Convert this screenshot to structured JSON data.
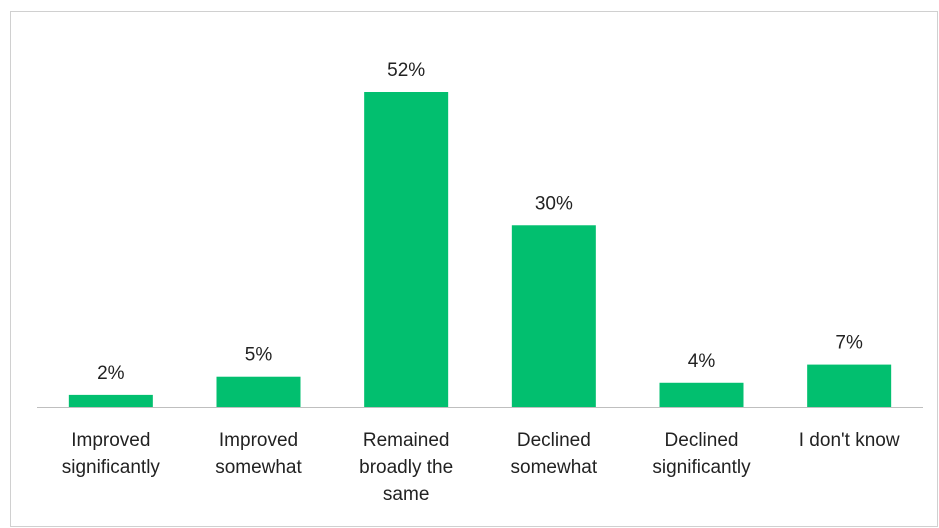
{
  "chart_data": {
    "type": "bar",
    "categories": [
      "Improved significantly",
      "Improved somewhat",
      "Remained broadly the same",
      "Declined somewhat",
      "Declined significantly",
      "I don't know"
    ],
    "values": [
      2,
      5,
      52,
      30,
      4,
      7
    ],
    "value_labels": [
      "2%",
      "5%",
      "52%",
      "30%",
      "4%",
      "7%"
    ],
    "color": "#02bf6f"
  }
}
